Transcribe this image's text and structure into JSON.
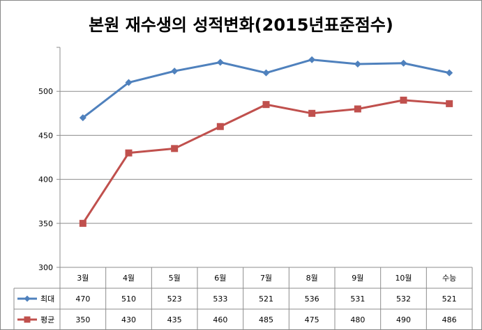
{
  "chart_data": {
    "type": "line",
    "title": "본원 재수생의 성적변화(2015년표준점수)",
    "categories": [
      "3월",
      "4월",
      "5월",
      "6월",
      "7월",
      "8월",
      "9월",
      "10월",
      "수능"
    ],
    "series": [
      {
        "name": "최대",
        "values": [
          470,
          510,
          523,
          533,
          521,
          536,
          531,
          532,
          521
        ],
        "color": "#4F81BD",
        "marker": "diamond"
      },
      {
        "name": "평균",
        "values": [
          350,
          430,
          435,
          460,
          485,
          475,
          480,
          490,
          486
        ],
        "color": "#C0504D",
        "marker": "square"
      }
    ],
    "ylim": [
      300,
      550
    ],
    "yticks": [
      300,
      350,
      400,
      450,
      500
    ],
    "grid": true,
    "legend": "data-table"
  }
}
